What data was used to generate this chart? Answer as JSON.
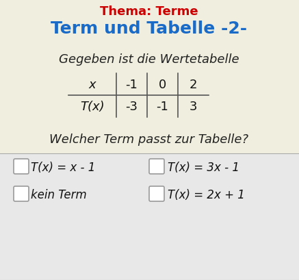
{
  "title": "Term und Tabelle -2-",
  "title_color": "#1a6ac8",
  "subtitle": "Gegeben ist die Wertetabelle",
  "question": "Welcher Term passt zur Tabelle?",
  "background_color": "#f0efdf",
  "table_x_values": [
    "x",
    "-1",
    "0",
    "2"
  ],
  "table_tx_values": [
    "T(x)",
    "-3",
    "-1",
    "3"
  ],
  "options": [
    [
      "T(x) = x - 1",
      "T(x) = 3x - 1"
    ],
    [
      "kein Term",
      "T(x) = 2x + 1"
    ]
  ],
  "option_section_bg": "#e8e8e8",
  "top_text": "Thema: Terme",
  "top_text_color": "#cc0000"
}
